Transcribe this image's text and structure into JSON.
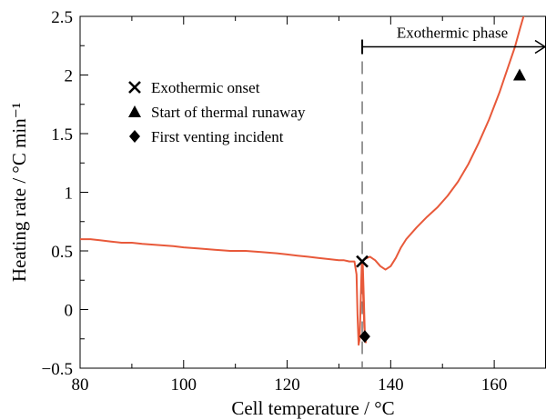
{
  "chart_data": {
    "type": "line",
    "title": "",
    "xlabel": "Cell temperature / °C",
    "ylabel": "Heating rate / °C min⁻¹",
    "xlim": [
      80,
      170
    ],
    "ylim": [
      -0.5,
      2.5
    ],
    "x_ticks": [
      80,
      100,
      120,
      140,
      160
    ],
    "x_tick_labels": [
      "80",
      "100",
      "120",
      "140",
      "160"
    ],
    "y_ticks": [
      -0.5,
      0,
      0.5,
      1,
      1.5,
      2,
      2.5
    ],
    "y_tick_labels": [
      "−0.5",
      "0",
      "0.5",
      "1",
      "1.5",
      "2",
      "2.5"
    ],
    "grid": false,
    "series": [
      {
        "color": "#e8593a",
        "x": [
          80,
          82,
          84,
          86,
          88,
          90,
          92,
          95,
          98,
          100,
          103,
          106,
          109,
          112,
          115,
          118,
          120,
          122,
          124,
          126,
          128,
          130,
          131,
          132,
          133,
          133.4,
          133.6,
          133.8,
          134.0,
          134.2,
          134.4,
          134.6,
          134.8,
          135.0,
          135.2,
          134.9,
          134.7,
          134.5,
          134.5,
          135,
          136,
          137,
          138,
          139,
          140,
          141,
          142,
          143,
          145,
          147,
          149,
          151,
          153,
          155,
          157,
          159,
          161,
          162,
          163,
          164,
          165,
          166,
          167
        ],
        "y": [
          0.6,
          0.6,
          0.59,
          0.58,
          0.57,
          0.57,
          0.56,
          0.55,
          0.54,
          0.53,
          0.52,
          0.51,
          0.5,
          0.5,
          0.49,
          0.48,
          0.47,
          0.46,
          0.45,
          0.44,
          0.43,
          0.42,
          0.42,
          0.41,
          0.41,
          0.3,
          -0.05,
          -0.3,
          -0.25,
          0.05,
          0.38,
          0.4,
          0.1,
          -0.2,
          -0.28,
          -0.15,
          0.1,
          0.38,
          0.41,
          0.43,
          0.45,
          0.42,
          0.37,
          0.34,
          0.37,
          0.44,
          0.53,
          0.6,
          0.7,
          0.79,
          0.87,
          0.97,
          1.09,
          1.24,
          1.42,
          1.62,
          1.85,
          1.98,
          2.11,
          2.24,
          2.4,
          2.55,
          2.7
        ]
      }
    ],
    "markers": [
      {
        "label": "Exothermic onset",
        "symbol": "x",
        "x": 134.5,
        "y": 0.41
      },
      {
        "label": "Start of thermal runaway",
        "symbol": "triangle",
        "x": 164.9,
        "y": 2.0
      },
      {
        "label": "First venting incident",
        "symbol": "diamond",
        "x": 135.0,
        "y": -0.23
      }
    ],
    "onset_line_x": 134.5,
    "annotation": {
      "text": "Exothermic phase",
      "y": 2.24,
      "x_start": 134.5,
      "x_end": 170
    },
    "legend": {
      "placement": "upper-left",
      "entries": [
        {
          "symbol": "x",
          "label": "Exothermic onset"
        },
        {
          "symbol": "triangle",
          "label": "Start of thermal runaway"
        },
        {
          "symbol": "diamond",
          "label": "First venting incident"
        }
      ]
    }
  }
}
